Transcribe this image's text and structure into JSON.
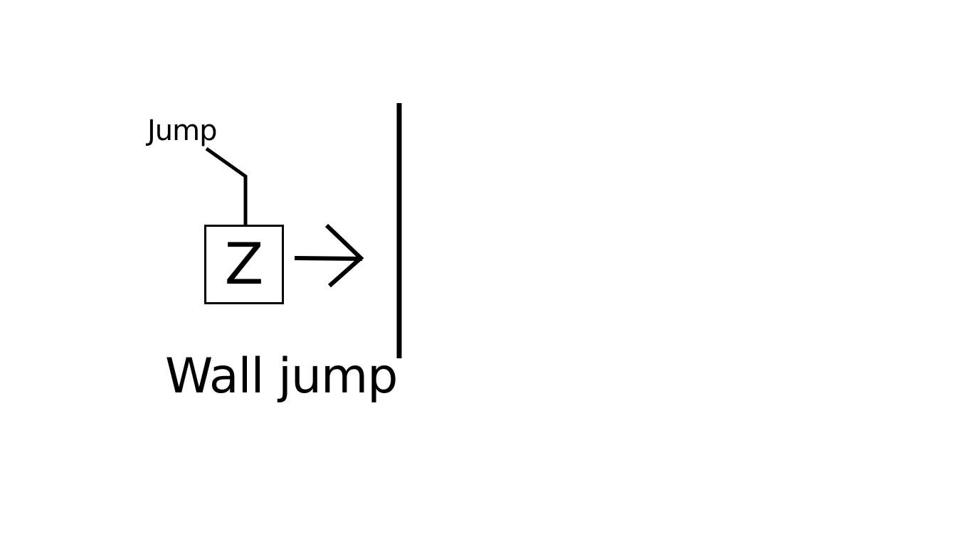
{
  "labels": {
    "jump": "Jump",
    "key": "Z",
    "caption": "Wall jump"
  },
  "icons": {
    "leader_line": "leader-line-icon",
    "arrow": "right-arrow-icon",
    "wall": "wall-line-icon"
  },
  "colors": {
    "background": "#ffffff",
    "ink": "#000000"
  }
}
